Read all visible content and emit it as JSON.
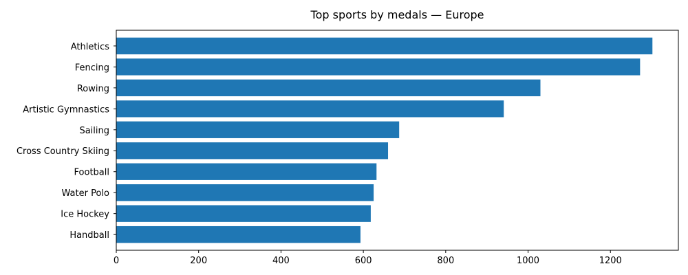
{
  "chart_data": {
    "type": "bar",
    "orientation": "horizontal",
    "title": "Top sports by medals — Europe",
    "xlabel": "",
    "ylabel": "",
    "categories": [
      "Athletics",
      "Fencing",
      "Rowing",
      "Artistic Gymnastics",
      "Sailing",
      "Cross Country Skiing",
      "Football",
      "Water Polo",
      "Ice Hockey",
      "Handball"
    ],
    "values": [
      1302,
      1272,
      1030,
      941,
      687,
      660,
      632,
      625,
      618,
      593
    ],
    "xlim": [
      0,
      1365
    ],
    "xticks": [
      0,
      200,
      400,
      600,
      800,
      1000,
      1200
    ],
    "bar_color": "#1f77b4",
    "grid": false,
    "legend": "none"
  }
}
